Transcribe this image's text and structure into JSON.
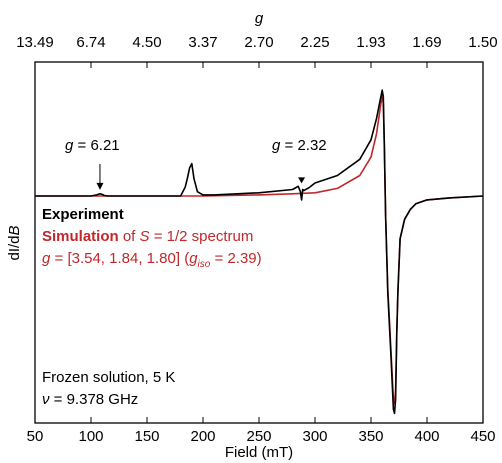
{
  "chart_data": {
    "type": "line",
    "title": "",
    "xlabel": "Field (mT)",
    "ylabel_parts": [
      "dI/d",
      "B"
    ],
    "xlim": [
      50,
      450
    ],
    "xticks": [
      50,
      100,
      150,
      200,
      250,
      300,
      350,
      400,
      450
    ],
    "y_ticks_shown": false,
    "top_axis": {
      "label": "g",
      "ticks": [
        "13.49",
        "6.74",
        "4.50",
        "3.37",
        "2.70",
        "2.25",
        "1.93",
        "1.69",
        "1.50"
      ]
    },
    "series": [
      {
        "name": "Experiment",
        "color": "#000000",
        "x": [
          50,
          100,
          105,
          108,
          110,
          112,
          115,
          180,
          184,
          186,
          188,
          190,
          192,
          195,
          200,
          210,
          250,
          280,
          285,
          287,
          288,
          289,
          290,
          295,
          300,
          320,
          340,
          350,
          355,
          358,
          360,
          361,
          362,
          363,
          365,
          368,
          370,
          371,
          372,
          373,
          374,
          376,
          380,
          385,
          390,
          400,
          420,
          450
        ],
        "y": [
          0,
          0,
          0.01,
          0.02,
          0.015,
          0.005,
          0,
          0,
          0.08,
          0.16,
          0.26,
          0.3,
          0.16,
          0.04,
          0.01,
          0.01,
          0.03,
          0.06,
          0.09,
          0.04,
          -0.02,
          0.06,
          0.05,
          0.08,
          0.12,
          0.19,
          0.34,
          0.52,
          0.72,
          0.88,
          0.98,
          0.92,
          0.45,
          -0.1,
          -0.5,
          -0.85,
          -1.1,
          -1.12,
          -1.05,
          -0.7,
          -0.5,
          -0.22,
          -0.12,
          -0.07,
          -0.04,
          -0.02,
          -0.01,
          0
        ]
      },
      {
        "name": "Simulation",
        "color": "#c0282b",
        "x": [
          50,
          200,
          250,
          280,
          300,
          320,
          340,
          350,
          355,
          358,
          360,
          361,
          362,
          363,
          365,
          368,
          370,
          371,
          372,
          373,
          374,
          376,
          380,
          385,
          390,
          400,
          420,
          450
        ],
        "y": [
          0,
          0,
          0.01,
          0.02,
          0.03,
          0.07,
          0.19,
          0.36,
          0.58,
          0.8,
          0.93,
          0.86,
          0.42,
          -0.1,
          -0.48,
          -0.82,
          -1.05,
          -1.07,
          -1.0,
          -0.7,
          -0.48,
          -0.22,
          -0.12,
          -0.07,
          -0.04,
          -0.02,
          -0.01,
          0
        ]
      }
    ],
    "annotations": [
      {
        "text_parts": [
          "g",
          " = 6.21"
        ],
        "x": 108,
        "y": 0.02,
        "arrow": "down"
      },
      {
        "text_parts": [
          "g",
          " = 2.32"
        ],
        "x": 288,
        "y": 0.08,
        "arrow": "down-triangle"
      }
    ],
    "legend": {
      "position": "left",
      "experiment_label": "Experiment",
      "simulation_parts": [
        "Simulation",
        " of ",
        "S",
        " = 1/2 spectrum"
      ],
      "g_line_parts": [
        "g",
        " = [3.54, 1.84, 1.80] (",
        "g",
        "iso",
        " = 2.39)"
      ]
    },
    "conditions": {
      "line1": "Frozen solution, 5 K",
      "line2_parts": [
        "ν",
        " = 9.378 GHz"
      ]
    }
  }
}
